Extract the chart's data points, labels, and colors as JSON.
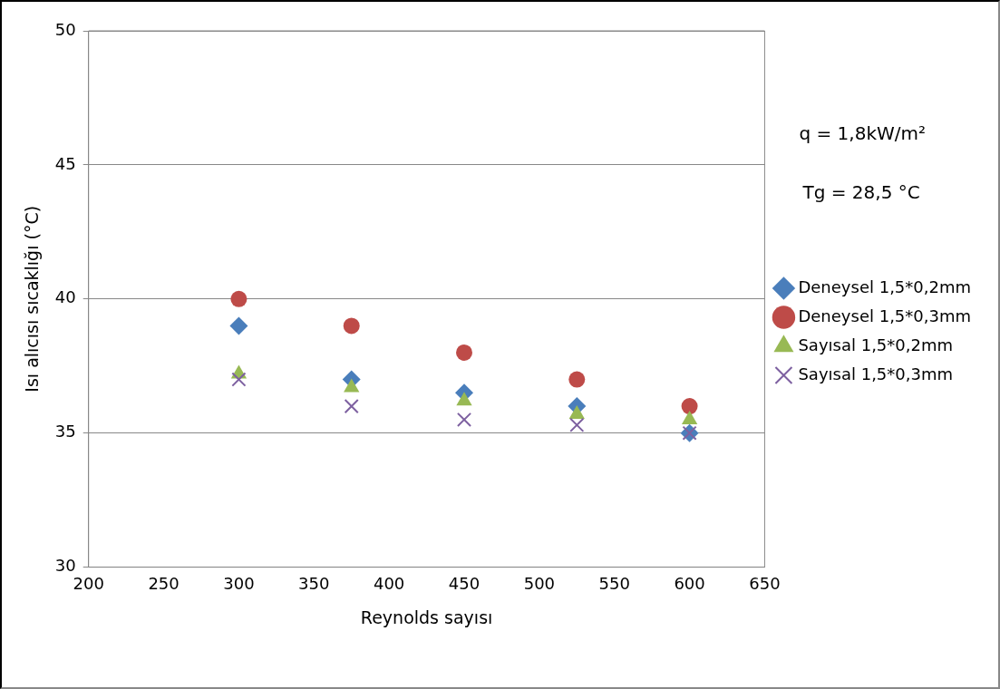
{
  "chart_data": {
    "type": "scatter",
    "xlabel": "Reynolds sayısı",
    "ylabel": "Isı alıcısı sıcaklığı (°C)",
    "x": [
      300,
      375,
      450,
      525,
      600
    ],
    "series": [
      {
        "name": "Deneysel 1,5*0,2mm",
        "color": "#4a7ebb",
        "marker": "diamond",
        "values": [
          39,
          37,
          36.5,
          36,
          35
        ]
      },
      {
        "name": "Deneysel 1,5*0,3mm",
        "color": "#be4b48",
        "marker": "circle",
        "values": [
          40,
          39,
          38,
          37,
          36
        ]
      },
      {
        "name": "Sayısal 1,5*0,2mm",
        "color": "#98b954",
        "marker": "triangle",
        "values": [
          37.2,
          36.7,
          36.2,
          35.7,
          35.5
        ]
      },
      {
        "name": "Sayısal 1,5*0,3mm",
        "color": "#7d60a0",
        "marker": "cross",
        "values": [
          37,
          36,
          35.5,
          35.3,
          35
        ]
      }
    ],
    "xlim": [
      200,
      650
    ],
    "xticks": [
      200,
      250,
      300,
      350,
      400,
      450,
      500,
      550,
      600,
      650
    ],
    "ylim": [
      30,
      50
    ],
    "yticks": [
      30,
      35,
      40,
      45,
      50
    ],
    "grid": "y",
    "legend": "right",
    "annotations": [
      "q = 1,8kW/m²",
      "Tg = 28,5 °C"
    ]
  }
}
